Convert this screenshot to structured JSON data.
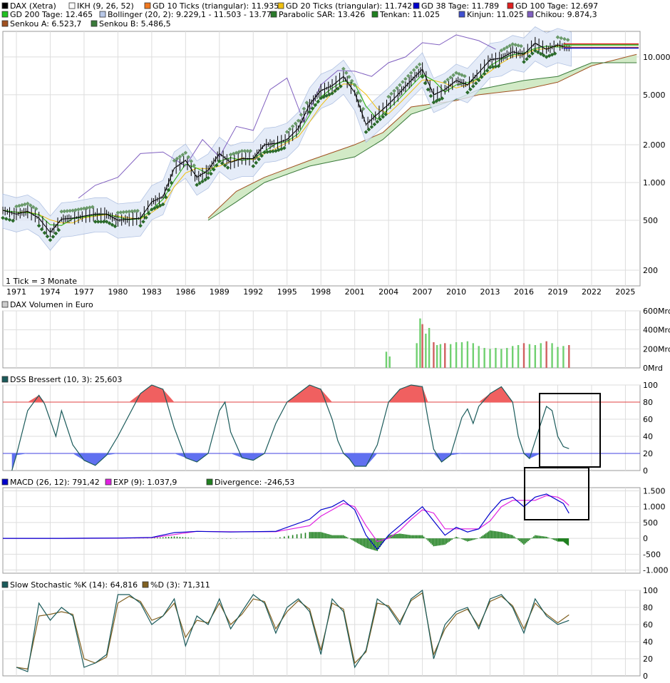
{
  "colors": {
    "dax": "#000000",
    "ikh": "#ffffff",
    "gd10": "#f07820",
    "gd20": "#f0c010",
    "gd38": "#0000cc",
    "gd100": "#e02020",
    "gd200": "#20c020",
    "bollinger": "#b8c8e8",
    "sar": "#2a7a2a",
    "tenkan": "#208020",
    "kinjun": "#4050d0",
    "chikou": "#8060c0",
    "senkouA": "#a05020",
    "senkouB": "#3a7a3a",
    "volume_up": "#70d070",
    "volume_down": "#d06060",
    "dss": "#1a5a5a",
    "dss_over": "#f06060",
    "dss_under": "#6070f0",
    "macd": "#0000cc",
    "macd_exp": "#e020e0",
    "divergence": "#208020",
    "stoch_k": "#1a5a5a",
    "stoch_d": "#806020",
    "grid": "#dddddd"
  },
  "main": {
    "legend": [
      {
        "swatch": "dax",
        "text": "DAX (Xetra)"
      },
      {
        "swatch": "ikh",
        "text": "IKH (9, 26, 52)"
      },
      {
        "swatch": "gd10",
        "text": "GD 10 Ticks (triangular): 11.935"
      },
      {
        "swatch": "gd20",
        "text": "GD 20 Ticks (triangular): 11.742"
      },
      {
        "swatch": "gd38",
        "text": "GD 38 Tage: 11.789"
      },
      {
        "swatch": "gd100",
        "text": "GD 100 Tage: 12.697"
      },
      {
        "swatch": "gd200",
        "text": "GD 200 Tage: 12.465"
      },
      {
        "swatch": "bollinger",
        "text": "Bollinger (20, 2): 9.229,1 - 11.503 - 13.776"
      },
      {
        "swatch": "sar",
        "text": "Parabolic SAR: 13.426"
      },
      {
        "swatch": "tenkan",
        "text": "Tenkan: 11.025"
      },
      {
        "swatch": "kinjun",
        "text": "Kinjun: 11.025"
      },
      {
        "swatch": "chikou",
        "text": "Chikou: 9.874,3"
      },
      {
        "swatch": "senkouA",
        "text": "Senkou A: 6.523,7"
      },
      {
        "swatch": "senkouB",
        "text": "Senkou B: 5.486,5"
      }
    ],
    "note": "1 Tick = 3 Monate",
    "x_labels": [
      "1971",
      "1974",
      "1977",
      "1980",
      "1983",
      "1986",
      "1989",
      "1992",
      "1995",
      "1998",
      "2001",
      "2004",
      "2007",
      "2010",
      "2013",
      "2016",
      "2019",
      "2022",
      "2025"
    ],
    "y_labels": [
      "10.000",
      "5.000",
      "2.000",
      "1.000",
      "500",
      "200"
    ]
  },
  "volume": {
    "title": "DAX Volumen in Euro",
    "y_labels": [
      "600Mrd",
      "400Mrd",
      "200Mrd",
      "0Mrd"
    ]
  },
  "dss": {
    "title": "DSS Bressert (10, 3): 25,603",
    "y_labels": [
      "100",
      "80",
      "60",
      "40",
      "20",
      "0"
    ]
  },
  "macd": {
    "legend": [
      {
        "swatch": "macd",
        "text": "MACD (26, 12): 791,42"
      },
      {
        "swatch": "macd_exp",
        "text": "EXP (9): 1.037,9"
      },
      {
        "swatch": "divergence",
        "text": "Divergence: -246,53"
      }
    ],
    "y_labels": [
      "1.500",
      "1.000",
      "500",
      "0",
      "-500",
      "-1.000"
    ]
  },
  "stoch": {
    "legend": [
      {
        "swatch": "stoch_k",
        "text": "Slow Stochastic %K (14): 64,816"
      },
      {
        "swatch": "stoch_d",
        "text": "%D (3): 71,311"
      }
    ],
    "y_labels": [
      "100",
      "80",
      "60",
      "40",
      "20",
      "0"
    ]
  },
  "chart_data": [
    {
      "type": "line",
      "title": "DAX (Xetra)",
      "scale": "log",
      "ylim": [
        150,
        16000
      ],
      "x": [
        1969.8,
        1971,
        1972,
        1973,
        1974,
        1975,
        1976,
        1977,
        1978,
        1979,
        1980,
        1981,
        1982,
        1983,
        1984,
        1985,
        1986,
        1987,
        1988,
        1989,
        1990,
        1991,
        1992,
        1993,
        1994,
        1995,
        1996,
        1997,
        1998,
        1999,
        2000,
        2001,
        2002,
        2003,
        2004,
        2005,
        2006,
        2007,
        2008,
        2009,
        2010,
        2011,
        2012,
        2013,
        2014,
        2015,
        2016,
        2017,
        2018,
        2019,
        2020.2
      ],
      "series": [
        {
          "name": "DAX (Xetra)",
          "values": [
            600,
            560,
            590,
            520,
            400,
            510,
            520,
            540,
            560,
            560,
            500,
            510,
            520,
            700,
            770,
            1300,
            1500,
            1100,
            1250,
            1700,
            1450,
            1550,
            1550,
            2000,
            2050,
            2200,
            2700,
            4200,
            5400,
            5900,
            7000,
            5200,
            2900,
            3500,
            4200,
            5200,
            6500,
            8000,
            5000,
            5500,
            6500,
            6000,
            7500,
            9500,
            9800,
            11000,
            10500,
            12900,
            11500,
            12500,
            11700
          ]
        }
      ],
      "ikh_senkou_a": [
        {
          "x": 1988,
          "y": 520
        },
        {
          "x": 1990.5,
          "y": 850
        },
        {
          "x": 1993,
          "y": 1100
        },
        {
          "x": 1997,
          "y": 1500
        },
        {
          "x": 2001,
          "y": 2000
        },
        {
          "x": 2003.5,
          "y": 2500
        },
        {
          "x": 2006,
          "y": 4000
        },
        {
          "x": 2010,
          "y": 4500
        },
        {
          "x": 2012,
          "y": 5000
        },
        {
          "x": 2016,
          "y": 5500
        },
        {
          "x": 2019,
          "y": 6300
        },
        {
          "x": 2022,
          "y": 8500
        },
        {
          "x": 2026,
          "y": 10500
        }
      ],
      "ikh_senkou_b": [
        {
          "x": 1988,
          "y": 500
        },
        {
          "x": 1990.5,
          "y": 700
        },
        {
          "x": 1993,
          "y": 1000
        },
        {
          "x": 1997,
          "y": 1350
        },
        {
          "x": 2001,
          "y": 1600
        },
        {
          "x": 2003.5,
          "y": 2200
        },
        {
          "x": 2006,
          "y": 3500
        },
        {
          "x": 2010,
          "y": 4600
        },
        {
          "x": 2012,
          "y": 5500
        },
        {
          "x": 2016,
          "y": 6500
        },
        {
          "x": 2019,
          "y": 7000
        },
        {
          "x": 2022,
          "y": 9000
        },
        {
          "x": 2026,
          "y": 9000
        }
      ],
      "chikou": [
        {
          "x": 1976.5,
          "y": 750
        },
        {
          "x": 1978,
          "y": 950
        },
        {
          "x": 1980,
          "y": 1100
        },
        {
          "x": 1982,
          "y": 1700
        },
        {
          "x": 1984,
          "y": 1750
        },
        {
          "x": 1986,
          "y": 1350
        },
        {
          "x": 1987.5,
          "y": 2200
        },
        {
          "x": 1989,
          "y": 1600
        },
        {
          "x": 1990.5,
          "y": 2800
        },
        {
          "x": 1992,
          "y": 2600
        },
        {
          "x": 1993.5,
          "y": 5500
        },
        {
          "x": 1995,
          "y": 6800
        },
        {
          "x": 1996.5,
          "y": 3000
        },
        {
          "x": 1998,
          "y": 6000
        },
        {
          "x": 1999.5,
          "y": 7800
        },
        {
          "x": 2001,
          "y": 7700
        },
        {
          "x": 2002.5,
          "y": 7000
        },
        {
          "x": 2004,
          "y": 9000
        },
        {
          "x": 2005.5,
          "y": 10000
        },
        {
          "x": 2007,
          "y": 13000
        },
        {
          "x": 2008.5,
          "y": 12500
        },
        {
          "x": 2010,
          "y": 15000
        },
        {
          "x": 2012,
          "y": 13500
        },
        {
          "x": 2013.5,
          "y": 11500
        }
      ]
    },
    {
      "type": "bar",
      "title": "DAX Volumen in Euro",
      "x": [
        2003.8,
        2004.1,
        2006.5,
        2006.8,
        2007.0,
        2007.3,
        2007.6,
        2008.0,
        2008.3,
        2008.6,
        2009.0,
        2009.5,
        2010,
        2010.5,
        2011,
        2011.5,
        2012,
        2012.5,
        2013,
        2013.5,
        2014,
        2014.5,
        2015,
        2015.5,
        2016,
        2016.5,
        2017,
        2017.5,
        2018,
        2018.5,
        2019,
        2019.5,
        2020
      ],
      "values": [
        170,
        120,
        260,
        520,
        460,
        360,
        420,
        270,
        240,
        250,
        260,
        250,
        270,
        270,
        280,
        260,
        230,
        210,
        200,
        210,
        200,
        210,
        230,
        240,
        260,
        250,
        240,
        260,
        280,
        260,
        220,
        230,
        240
      ],
      "ylim": [
        0,
        600
      ]
    },
    {
      "type": "line",
      "title": "DSS Bressert (10, 3)",
      "ylim": [
        0,
        100
      ],
      "values": [
        0,
        18,
        70,
        88,
        78,
        40,
        70,
        30,
        12,
        6,
        18,
        40,
        65,
        90,
        100,
        95,
        50,
        15,
        10,
        20,
        70,
        80,
        45,
        15,
        12,
        20,
        55,
        80,
        90,
        100,
        95,
        60,
        35,
        20,
        14,
        5,
        5,
        30,
        80,
        95,
        100,
        98,
        60,
        25,
        10,
        18,
        62,
        72,
        55,
        75,
        90,
        98,
        80,
        40,
        20,
        14,
        55,
        75,
        70,
        40,
        28,
        25.603
      ],
      "x": [
        1970.6,
        1971,
        1972,
        1973,
        1973.5,
        1974.5,
        1975,
        1976,
        1977,
        1978,
        1979,
        1980,
        1981,
        1982,
        1983,
        1984,
        1985,
        1986,
        1987,
        1988,
        1989,
        1989.5,
        1990,
        1991,
        1992,
        1993,
        1994,
        1995,
        1996,
        1997,
        1998,
        1999,
        1999.5,
        2000,
        2000.5,
        2001,
        2002,
        2003,
        2004,
        2005,
        2006,
        2007,
        2007.5,
        2008,
        2008.7,
        2009.5,
        2010.5,
        2011,
        2011.5,
        2012,
        2013,
        2014,
        2015,
        2015.5,
        2016,
        2016.5,
        2017.5,
        2018,
        2018.5,
        2019,
        2019.5,
        2020
      ]
    },
    {
      "type": "line",
      "title": "MACD",
      "ylim": [
        -1100,
        1600
      ],
      "x": [
        1969.8,
        1975,
        1980,
        1983,
        1985,
        1987,
        1990,
        1994,
        1997,
        1998,
        1999,
        2000,
        2001,
        2002,
        2003,
        2004,
        2005,
        2006,
        2007,
        2008,
        2009,
        2010,
        2011,
        2012,
        2013,
        2014,
        2015,
        2016,
        2017,
        2018,
        2019,
        2019.5,
        2020
      ],
      "series": [
        {
          "name": "MACD (26, 12)",
          "values": [
            0,
            0,
            10,
            30,
            180,
            220,
            200,
            220,
            600,
            900,
            1000,
            1200,
            900,
            100,
            -350,
            100,
            400,
            700,
            1000,
            550,
            100,
            350,
            200,
            300,
            800,
            1200,
            1300,
            1000,
            1300,
            1400,
            1200,
            1100,
            791.42
          ]
        },
        {
          "name": "EXP (9)",
          "values": [
            0,
            0,
            5,
            20,
            120,
            220,
            210,
            210,
            400,
            700,
            900,
            1100,
            1000,
            400,
            -100,
            0,
            250,
            600,
            900,
            800,
            300,
            300,
            300,
            300,
            550,
            1000,
            1200,
            1200,
            1200,
            1350,
            1300,
            1200,
            1037.9
          ]
        },
        {
          "name": "Divergence",
          "values": [
            0,
            0,
            5,
            10,
            60,
            0,
            -10,
            10,
            200,
            200,
            100,
            100,
            -100,
            -300,
            -400,
            100,
            150,
            100,
            100,
            -250,
            -200,
            50,
            -100,
            0,
            250,
            200,
            100,
            -200,
            100,
            50,
            -100,
            -100,
            -246.53
          ]
        }
      ]
    },
    {
      "type": "line",
      "title": "Slow Stochastic",
      "ylim": [
        0,
        100
      ],
      "x": [
        1971,
        1972,
        1973,
        1974,
        1975,
        1976,
        1977,
        1978,
        1979,
        1980,
        1981,
        1982,
        1983,
        1984,
        1985,
        1986,
        1987,
        1988,
        1989,
        1990,
        1991,
        1992,
        1993,
        1994,
        1995,
        1996,
        1997,
        1998,
        1999,
        2000,
        2001,
        2002,
        2003,
        2004,
        2005,
        2006,
        2007,
        2008,
        2009,
        2010,
        2011,
        2012,
        2013,
        2014,
        2015,
        2016,
        2017,
        2018,
        2019,
        2020
      ],
      "series": [
        {
          "name": "Slow Stochastic %K (14)",
          "values": [
            10,
            5,
            85,
            65,
            80,
            70,
            10,
            15,
            25,
            95,
            95,
            85,
            60,
            70,
            90,
            35,
            70,
            60,
            90,
            55,
            75,
            95,
            85,
            50,
            80,
            90,
            75,
            25,
            90,
            75,
            10,
            30,
            90,
            80,
            60,
            90,
            100,
            20,
            60,
            75,
            80,
            55,
            90,
            95,
            80,
            50,
            90,
            70,
            60,
            64.816
          ]
        },
        {
          "name": "%D (3)",
          "values": [
            10,
            8,
            70,
            72,
            75,
            72,
            20,
            15,
            22,
            85,
            93,
            87,
            65,
            70,
            85,
            45,
            65,
            62,
            85,
            60,
            72,
            90,
            87,
            55,
            75,
            88,
            78,
            30,
            85,
            78,
            15,
            28,
            85,
            82,
            63,
            88,
            97,
            25,
            55,
            72,
            78,
            58,
            87,
            93,
            82,
            55,
            85,
            72,
            62,
            71.311
          ]
        }
      ]
    }
  ]
}
